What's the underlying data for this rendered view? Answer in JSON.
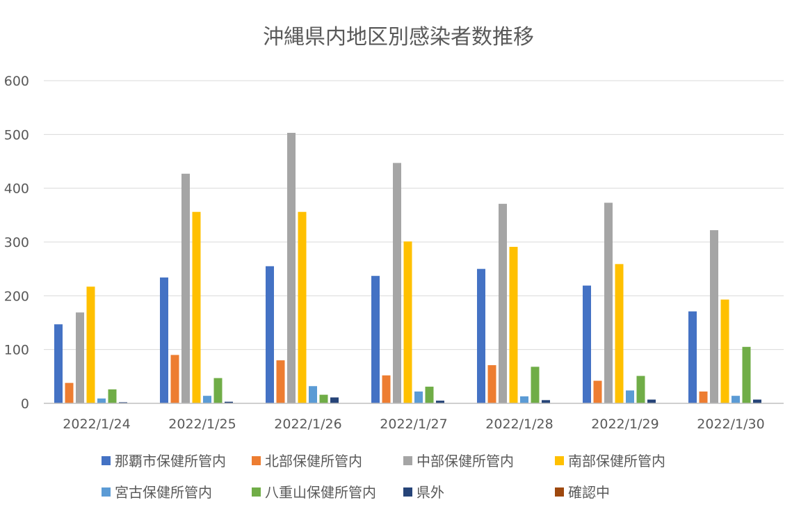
{
  "chart_data": {
    "type": "bar",
    "title": "沖縄県内地区別感染者数推移",
    "xlabel": "",
    "ylabel": "",
    "ylim": [
      0,
      600
    ],
    "yticks": [
      0,
      100,
      200,
      300,
      400,
      500,
      600
    ],
    "grid": true,
    "legend_position": "bottom",
    "categories": [
      "2022/1/24",
      "2022/1/25",
      "2022/1/26",
      "2022/1/27",
      "2022/1/28",
      "2022/1/29",
      "2022/1/30"
    ],
    "series": [
      {
        "name": "那覇市保健所管内",
        "color": "#4472c4",
        "values": [
          147,
          234,
          255,
          237,
          250,
          219,
          171
        ]
      },
      {
        "name": "北部保健所管内",
        "color": "#ed7d31",
        "values": [
          38,
          90,
          80,
          52,
          71,
          42,
          22
        ]
      },
      {
        "name": "中部保健所管内",
        "color": "#a5a5a5",
        "values": [
          169,
          427,
          503,
          447,
          371,
          373,
          322
        ]
      },
      {
        "name": "南部保健所管内",
        "color": "#ffc000",
        "values": [
          217,
          356,
          356,
          301,
          291,
          259,
          193
        ]
      },
      {
        "name": "宮古保健所管内",
        "color": "#5b9bd5",
        "values": [
          9,
          14,
          32,
          22,
          13,
          24,
          14
        ]
      },
      {
        "name": "八重山保健所管内",
        "color": "#70ad47",
        "values": [
          26,
          47,
          16,
          31,
          68,
          51,
          105
        ]
      },
      {
        "name": "県外",
        "color": "#264478",
        "values": [
          2,
          3,
          11,
          5,
          6,
          7,
          7
        ]
      },
      {
        "name": "確認中",
        "color": "#9e480e",
        "values": [
          0,
          0,
          0,
          0,
          0,
          0,
          0
        ]
      }
    ]
  }
}
